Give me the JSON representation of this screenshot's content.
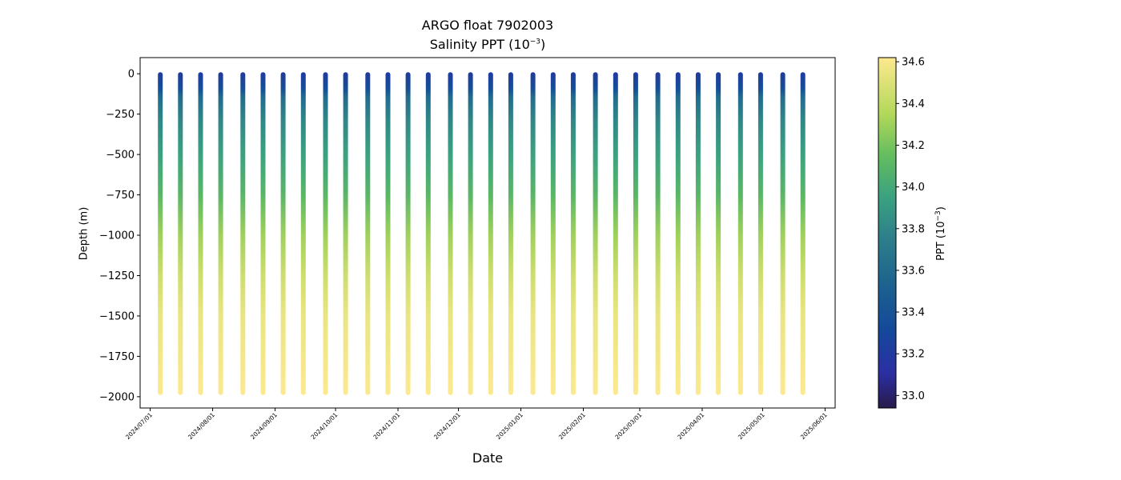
{
  "title_line1": "ARGO float 7902003",
  "title_line2_main": "Salinity PPT (10",
  "title_line2_exp": "−3",
  "title_line2_end": ")",
  "xlabel": "Date",
  "ylabel": "Depth (m)",
  "cb_label_main": "PPT (10",
  "cb_label_exp": "−3",
  "cb_label_end": ")",
  "chart_data": {
    "type": "scatter",
    "x_axis": {
      "scale": "date",
      "range": [
        "2024-06-26",
        "2025-06-06"
      ],
      "ticks": [
        "2024-07-01",
        "2024-08-01",
        "2024-09-01",
        "2024-10-01",
        "2024-11-01",
        "2024-12-01",
        "2025-01-01",
        "2025-02-01",
        "2025-03-01",
        "2025-04-01",
        "2025-05-01",
        "2025-06-01"
      ],
      "tick_labels": [
        "2024/07/01",
        "2024/08/01",
        "2024/09/01",
        "2024/10/01",
        "2024/11/01",
        "2024/12/01",
        "2025/01/01",
        "2025/02/01",
        "2025/03/01",
        "2025/04/01",
        "2025/05/01",
        "2025/06/01"
      ]
    },
    "y_axis": {
      "range": [
        -2070,
        100
      ],
      "ticks": [
        0,
        -250,
        -500,
        -750,
        -1000,
        -1250,
        -1500,
        -1750,
        -2000
      ],
      "tick_labels": [
        "0",
        "−250",
        "−500",
        "−750",
        "−1000",
        "−1250",
        "−1500",
        "−1750",
        "−2000"
      ]
    },
    "colorbar": {
      "cmap": "haline",
      "range": [
        32.94,
        34.62
      ],
      "ticks": [
        33.0,
        33.2,
        33.4,
        33.6,
        33.8,
        34.0,
        34.2,
        34.4,
        34.6
      ],
      "tick_labels": [
        "33.0",
        "33.2",
        "33.4",
        "33.6",
        "33.8",
        "34.0",
        "34.2",
        "34.4",
        "34.6"
      ]
    },
    "profile_dates": [
      "2024-07-06",
      "2024-07-16",
      "2024-07-26",
      "2024-08-05",
      "2024-08-16",
      "2024-08-26",
      "2024-09-05",
      "2024-09-15",
      "2024-09-26",
      "2024-10-06",
      "2024-10-17",
      "2024-10-27",
      "2024-11-06",
      "2024-11-16",
      "2024-11-27",
      "2024-12-07",
      "2024-12-17",
      "2024-12-27",
      "2025-01-07",
      "2025-01-17",
      "2025-01-27",
      "2025-02-07",
      "2025-02-17",
      "2025-02-27",
      "2025-03-10",
      "2025-03-20",
      "2025-03-30",
      "2025-04-09",
      "2025-04-20",
      "2025-04-30",
      "2025-05-11",
      "2025-05-21"
    ],
    "profile_bottom_depth": -1980,
    "salinity_profile": [
      {
        "depth": 0,
        "salinity": 33.2
      },
      {
        "depth": -100,
        "salinity": 33.35
      },
      {
        "depth": -150,
        "salinity": 33.6
      },
      {
        "depth": -300,
        "salinity": 33.8
      },
      {
        "depth": -500,
        "salinity": 33.95
      },
      {
        "depth": -750,
        "salinity": 34.1
      },
      {
        "depth": -1000,
        "salinity": 34.3
      },
      {
        "depth": -1250,
        "salinity": 34.45
      },
      {
        "depth": -1500,
        "salinity": 34.55
      },
      {
        "depth": -1980,
        "salinity": 34.62
      }
    ]
  }
}
